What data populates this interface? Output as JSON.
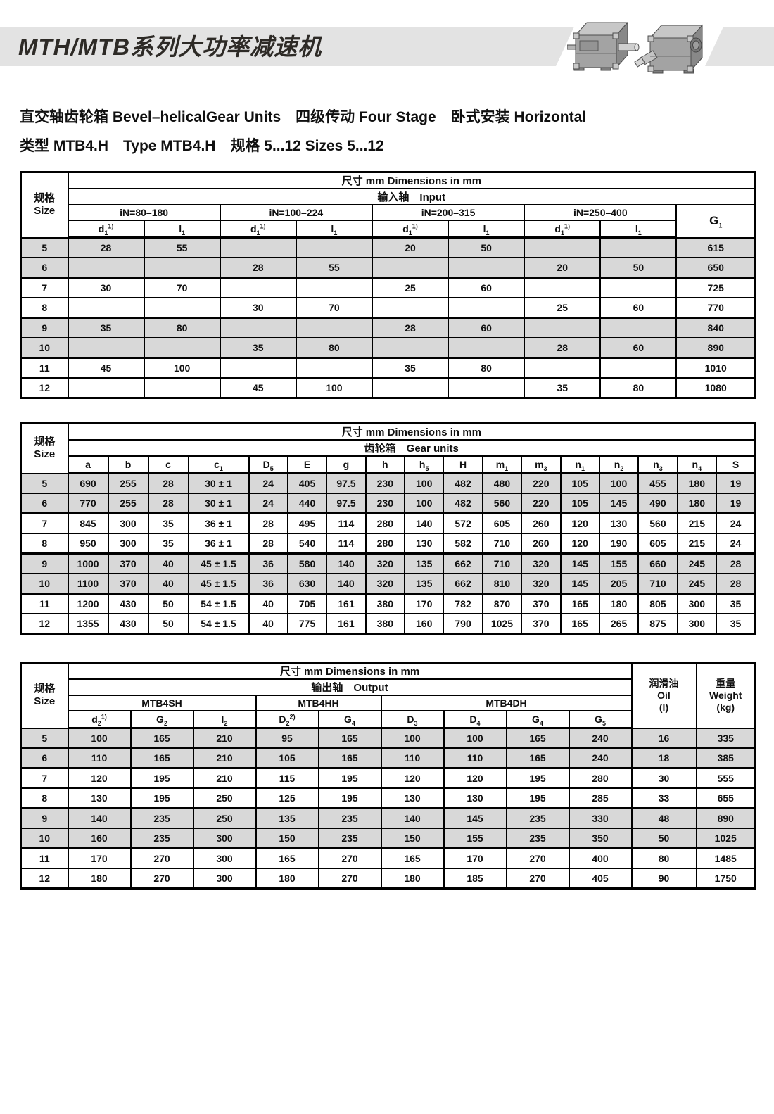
{
  "colors": {
    "banner_bg": "#e3e3e3",
    "shaded_row": "#d8d8d8",
    "border": "#000000",
    "title_text": "#2d2a26"
  },
  "header": {
    "title": "MTH/MTB系列大功率减速机",
    "photo1": "bevel-helical-gearbox-output-shaft",
    "photo2": "bevel-helical-gearbox-input-view"
  },
  "intro": {
    "line1": "直交轴齿轮箱 Bevel–helicalGear Units　四级传动 Four Stage　卧式安装 Horizontal",
    "line2": "类型 MTB4.H　Type MTB4.H　规格 5...12 Sizes 5...12"
  },
  "tables": {
    "input": {
      "size_cn": "规格",
      "size_en": "Size",
      "dims": "尺寸 mm Dimensions in mm",
      "section": "输入轴　Input",
      "groups": [
        {
          "label": "iN=80–180"
        },
        {
          "label": "iN=100–224"
        },
        {
          "label": "iN=200–315"
        },
        {
          "label": "iN=250–400"
        }
      ],
      "g1": {
        "base": "G",
        "sub": "1"
      },
      "dl_columns": [
        {
          "b": "d",
          "s": "1",
          "p": "1)"
        },
        {
          "b": "l",
          "s": "1"
        },
        {
          "b": "d",
          "s": "1",
          "p": "1)"
        },
        {
          "b": "l",
          "s": "1"
        },
        {
          "b": "d",
          "s": "1",
          "p": "1)"
        },
        {
          "b": "l",
          "s": "1"
        },
        {
          "b": "d",
          "s": "1",
          "p": "1)"
        },
        {
          "b": "l",
          "s": "1"
        }
      ],
      "rows": [
        {
          "size": "5",
          "shaded": true,
          "cells": [
            "28",
            "55",
            "",
            "",
            "20",
            "50",
            "",
            "",
            "615"
          ]
        },
        {
          "size": "6",
          "shaded": true,
          "cells": [
            "",
            "",
            "28",
            "55",
            "",
            "",
            "20",
            "50",
            "650"
          ]
        },
        {
          "size": "7",
          "shaded": false,
          "cells": [
            "30",
            "70",
            "",
            "",
            "25",
            "60",
            "",
            "",
            "725"
          ]
        },
        {
          "size": "8",
          "shaded": false,
          "cells": [
            "",
            "",
            "30",
            "70",
            "",
            "",
            "25",
            "60",
            "770"
          ]
        },
        {
          "size": "9",
          "shaded": true,
          "cells": [
            "35",
            "80",
            "",
            "",
            "28",
            "60",
            "",
            "",
            "840"
          ]
        },
        {
          "size": "10",
          "shaded": true,
          "cells": [
            "",
            "",
            "35",
            "80",
            "",
            "",
            "28",
            "60",
            "890"
          ]
        },
        {
          "size": "11",
          "shaded": false,
          "cells": [
            "45",
            "100",
            "",
            "",
            "35",
            "80",
            "",
            "",
            "1010"
          ]
        },
        {
          "size": "12",
          "shaded": false,
          "cells": [
            "",
            "",
            "45",
            "100",
            "",
            "",
            "35",
            "80",
            "1080"
          ]
        }
      ]
    },
    "gear": {
      "size_cn": "规格",
      "size_en": "Size",
      "dims": "尺寸 mm Dimensions in mm",
      "section": "齿轮箱　Gear units",
      "columns": [
        {
          "b": "a"
        },
        {
          "b": "b"
        },
        {
          "b": "c"
        },
        {
          "b": "c",
          "s": "1"
        },
        {
          "b": "D",
          "s": "5"
        },
        {
          "b": "E"
        },
        {
          "b": "g"
        },
        {
          "b": "h"
        },
        {
          "b": "h",
          "s": "5"
        },
        {
          "b": "H"
        },
        {
          "b": "m",
          "s": "1"
        },
        {
          "b": "m",
          "s": "3"
        },
        {
          "b": "n",
          "s": "1"
        },
        {
          "b": "n",
          "s": "2"
        },
        {
          "b": "n",
          "s": "3"
        },
        {
          "b": "n",
          "s": "4"
        },
        {
          "b": "S"
        }
      ],
      "rows": [
        {
          "size": "5",
          "shaded": true,
          "cells": [
            "690",
            "255",
            "28",
            "30 ± 1",
            "24",
            "405",
            "97.5",
            "230",
            "100",
            "482",
            "480",
            "220",
            "105",
            "100",
            "455",
            "180",
            "19"
          ]
        },
        {
          "size": "6",
          "shaded": true,
          "cells": [
            "770",
            "255",
            "28",
            "30 ± 1",
            "24",
            "440",
            "97.5",
            "230",
            "100",
            "482",
            "560",
            "220",
            "105",
            "145",
            "490",
            "180",
            "19"
          ]
        },
        {
          "size": "7",
          "shaded": false,
          "cells": [
            "845",
            "300",
            "35",
            "36 ± 1",
            "28",
            "495",
            "114",
            "280",
            "140",
            "572",
            "605",
            "260",
            "120",
            "130",
            "560",
            "215",
            "24"
          ]
        },
        {
          "size": "8",
          "shaded": false,
          "cells": [
            "950",
            "300",
            "35",
            "36 ± 1",
            "28",
            "540",
            "114",
            "280",
            "130",
            "582",
            "710",
            "260",
            "120",
            "190",
            "605",
            "215",
            "24"
          ]
        },
        {
          "size": "9",
          "shaded": true,
          "cells": [
            "1000",
            "370",
            "40",
            "45 ± 1.5",
            "36",
            "580",
            "140",
            "320",
            "135",
            "662",
            "710",
            "320",
            "145",
            "155",
            "660",
            "245",
            "28"
          ]
        },
        {
          "size": "10",
          "shaded": true,
          "cells": [
            "1100",
            "370",
            "40",
            "45 ± 1.5",
            "36",
            "630",
            "140",
            "320",
            "135",
            "662",
            "810",
            "320",
            "145",
            "205",
            "710",
            "245",
            "28"
          ]
        },
        {
          "size": "11",
          "shaded": false,
          "cells": [
            "1200",
            "430",
            "50",
            "54 ± 1.5",
            "40",
            "705",
            "161",
            "380",
            "170",
            "782",
            "870",
            "370",
            "165",
            "180",
            "805",
            "300",
            "35"
          ]
        },
        {
          "size": "12",
          "shaded": false,
          "cells": [
            "1355",
            "430",
            "50",
            "54 ± 1.5",
            "40",
            "775",
            "161",
            "380",
            "160",
            "790",
            "1025",
            "370",
            "165",
            "265",
            "875",
            "300",
            "35"
          ]
        }
      ]
    },
    "output": {
      "size_cn": "规格",
      "size_en": "Size",
      "dims": "尺寸 mm Dimensions in mm",
      "section": "输出轴　Output",
      "groups": [
        {
          "label": "MTB4SH"
        },
        {
          "label": "MTB4HH"
        },
        {
          "label": "MTB4DH"
        }
      ],
      "columns": [
        {
          "b": "d",
          "s": "2",
          "p": "1)"
        },
        {
          "b": "G",
          "s": "2"
        },
        {
          "b": "l",
          "s": "2"
        },
        {
          "b": "D",
          "s": "2",
          "p": "2)"
        },
        {
          "b": "G",
          "s": "4"
        },
        {
          "b": "D",
          "s": "3"
        },
        {
          "b": "D",
          "s": "4"
        },
        {
          "b": "G",
          "s": "4"
        },
        {
          "b": "G",
          "s": "5"
        }
      ],
      "oil_cn": "润滑油",
      "oil_en": "Oil",
      "oil_unit": "(l)",
      "weight_cn": "重量",
      "weight_en": "Weight",
      "weight_unit": "(kg)",
      "rows": [
        {
          "size": "5",
          "shaded": true,
          "cells": [
            "100",
            "165",
            "210",
            "95",
            "165",
            "100",
            "100",
            "165",
            "240",
            "16",
            "335"
          ]
        },
        {
          "size": "6",
          "shaded": true,
          "cells": [
            "110",
            "165",
            "210",
            "105",
            "165",
            "110",
            "110",
            "165",
            "240",
            "18",
            "385"
          ]
        },
        {
          "size": "7",
          "shaded": false,
          "cells": [
            "120",
            "195",
            "210",
            "115",
            "195",
            "120",
            "120",
            "195",
            "280",
            "30",
            "555"
          ]
        },
        {
          "size": "8",
          "shaded": false,
          "cells": [
            "130",
            "195",
            "250",
            "125",
            "195",
            "130",
            "130",
            "195",
            "285",
            "33",
            "655"
          ]
        },
        {
          "size": "9",
          "shaded": true,
          "cells": [
            "140",
            "235",
            "250",
            "135",
            "235",
            "140",
            "145",
            "235",
            "330",
            "48",
            "890"
          ]
        },
        {
          "size": "10",
          "shaded": true,
          "cells": [
            "160",
            "235",
            "300",
            "150",
            "235",
            "150",
            "155",
            "235",
            "350",
            "50",
            "1025"
          ]
        },
        {
          "size": "11",
          "shaded": false,
          "cells": [
            "170",
            "270",
            "300",
            "165",
            "270",
            "165",
            "170",
            "270",
            "400",
            "80",
            "1485"
          ]
        },
        {
          "size": "12",
          "shaded": false,
          "cells": [
            "180",
            "270",
            "300",
            "180",
            "270",
            "180",
            "185",
            "270",
            "405",
            "90",
            "1750"
          ]
        }
      ]
    }
  }
}
